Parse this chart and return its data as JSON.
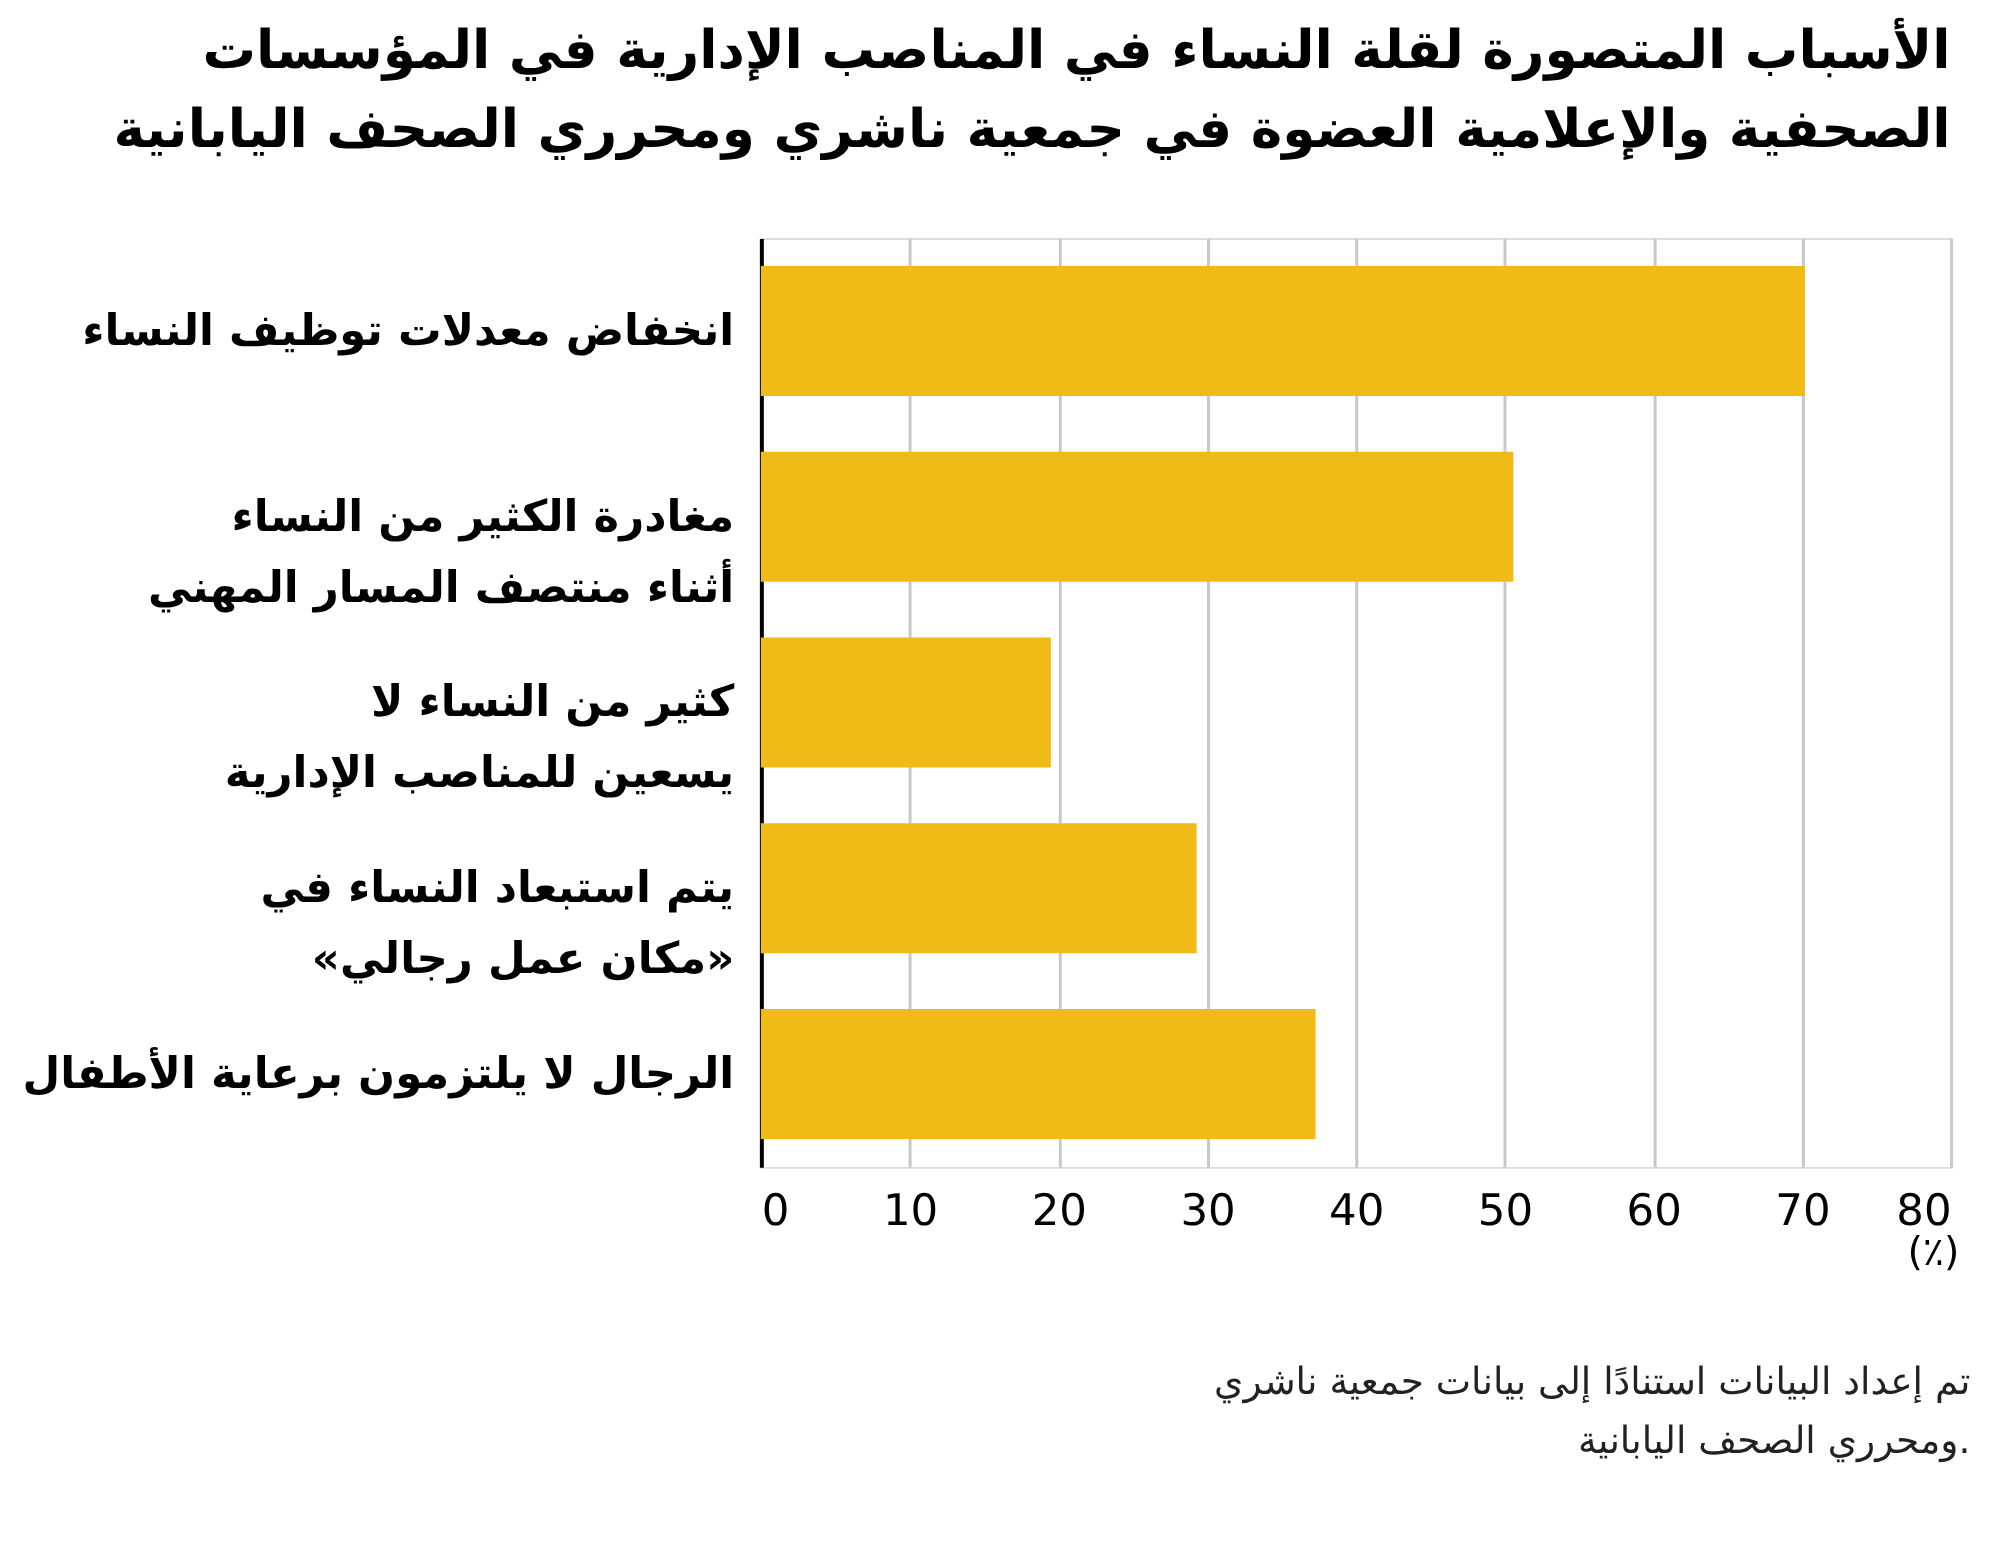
{
  "chart_data": {
    "type": "bar",
    "orientation": "horizontal",
    "title": "الأسباب المتصورة لقلة النساء في المناصب الإدارية في المؤسسات\nالصحفية والإعلامية العضوة في جمعية ناشري ومحرري الصحف اليابانية",
    "categories": [
      "انخفاض معدلات توظيف النساء",
      "مغادرة الكثير من النساء\nأثناء منتصف المسار المهني",
      "كثير من النساء لا\nيسعين للمناصب الإدارية",
      "يتم استبعاد النساء في\n«مكان عمل رجالي»",
      "الرجال لا يلتزمون برعاية الأطفال"
    ],
    "values": [
      70.2,
      50.6,
      19.5,
      29.3,
      37.3
    ],
    "color": "#f0bb16",
    "xlim": [
      0,
      80
    ],
    "xticks": [
      0,
      10,
      20,
      30,
      40,
      50,
      60,
      70,
      80
    ],
    "xlabel": "(٪)",
    "grid": "x",
    "annotations": [
      "تم إعداد البيانات استنادًا إلى بيانات جمعية ناشري\nومحرري الصحف اليابانية."
    ]
  }
}
